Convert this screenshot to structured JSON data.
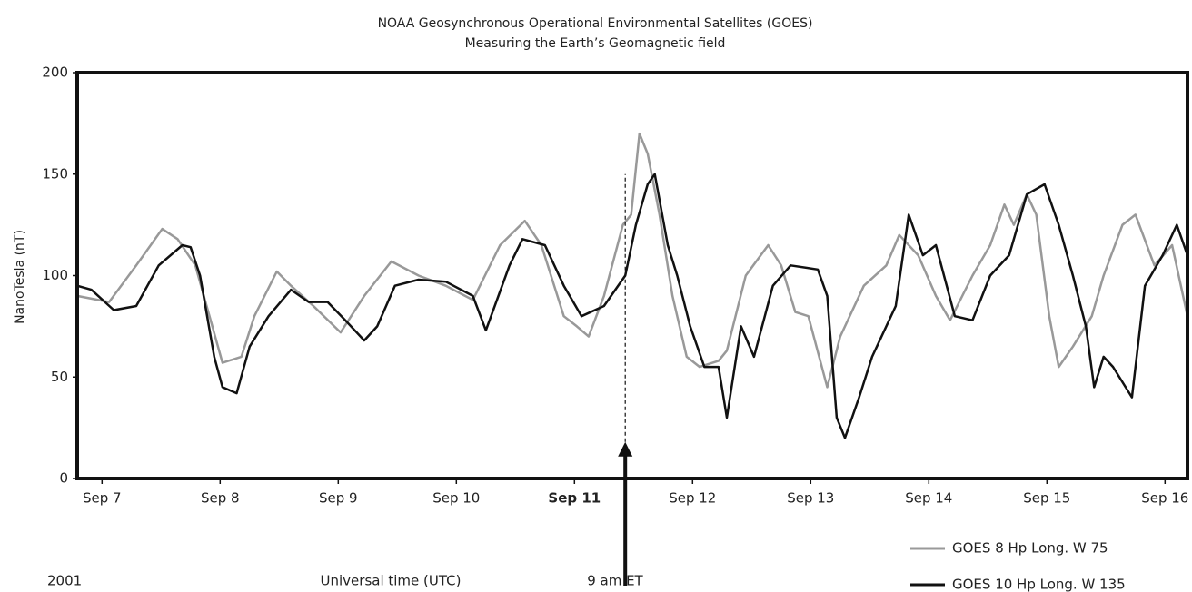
{
  "chart_data": {
    "type": "line",
    "title": "NOAA Geosynchronous Operational Environmental Satellites (GOES)",
    "subtitle": "Measuring the Earth’s Geomagnetic field",
    "y_label": "NanoTesla (nT)",
    "x_label": "Universal time (UTC)",
    "year_note": "2001",
    "xlim": [
      -0.21,
      9.19
    ],
    "ylim": [
      0,
      200
    ],
    "yticks": [
      0,
      50,
      100,
      150,
      200
    ],
    "xticks": [
      {
        "value": 0,
        "label": "Sep 7"
      },
      {
        "value": 1,
        "label": "Sep 8"
      },
      {
        "value": 2,
        "label": "Sep 9"
      },
      {
        "value": 3,
        "label": "Sep 10"
      },
      {
        "value": 4,
        "label": "Sep 11",
        "bold": true
      },
      {
        "value": 5,
        "label": "Sep 12"
      },
      {
        "value": 6,
        "label": "Sep 13"
      },
      {
        "value": 7,
        "label": "Sep 14"
      },
      {
        "value": 8,
        "label": "Sep 15"
      },
      {
        "value": 9,
        "label": "Sep 16"
      }
    ],
    "annotation": {
      "text": "9 am ET",
      "x": 4.43,
      "y": [
        18,
        150
      ]
    },
    "legend": "below-right",
    "series": [
      {
        "name": "GOES 8 Hp Long. W 75",
        "color": "#999999",
        "x": [
          -0.21,
          0.06,
          0.29,
          0.51,
          0.64,
          0.79,
          0.91,
          1.02,
          1.18,
          1.29,
          1.48,
          1.6,
          1.79,
          2.02,
          2.22,
          2.45,
          2.68,
          2.91,
          3.14,
          3.37,
          3.58,
          3.72,
          3.91,
          4.02,
          4.12,
          4.25,
          4.41,
          4.48,
          4.55,
          4.62,
          4.72,
          4.83,
          4.95,
          5.06,
          5.22,
          5.29,
          5.45,
          5.64,
          5.75,
          5.87,
          5.98,
          6.14,
          6.25,
          6.45,
          6.64,
          6.75,
          6.91,
          7.06,
          7.18,
          7.37,
          7.52,
          7.64,
          7.72,
          7.83,
          7.91,
          8.02,
          8.1,
          8.22,
          8.38,
          8.48,
          8.64,
          8.75,
          8.91,
          9.06,
          9.19
        ],
        "values": [
          90,
          87,
          105,
          123,
          118,
          105,
          80,
          57,
          60,
          80,
          102,
          95,
          85,
          72,
          90,
          107,
          100,
          95,
          88,
          115,
          127,
          115,
          80,
          75,
          70,
          90,
          125,
          130,
          170,
          160,
          130,
          90,
          60,
          55,
          58,
          63,
          100,
          115,
          105,
          82,
          80,
          45,
          70,
          95,
          105,
          120,
          110,
          90,
          78,
          100,
          115,
          135,
          125,
          140,
          130,
          80,
          55,
          65,
          80,
          100,
          125,
          130,
          105,
          115,
          80
        ]
      },
      {
        "name": "GOES 10 Hp Long. W 135",
        "color": "#111111",
        "x": [
          -0.21,
          -0.09,
          0.1,
          0.29,
          0.48,
          0.68,
          0.75,
          0.83,
          0.95,
          1.02,
          1.14,
          1.25,
          1.41,
          1.6,
          1.75,
          1.91,
          2.06,
          2.22,
          2.33,
          2.48,
          2.68,
          2.91,
          3.14,
          3.25,
          3.45,
          3.56,
          3.75,
          3.91,
          4.06,
          4.25,
          4.43,
          4.52,
          4.62,
          4.68,
          4.79,
          4.87,
          4.98,
          5.1,
          5.22,
          5.29,
          5.41,
          5.52,
          5.68,
          5.83,
          6.06,
          6.14,
          6.22,
          6.29,
          6.41,
          6.52,
          6.72,
          6.83,
          6.95,
          7.06,
          7.22,
          7.37,
          7.52,
          7.68,
          7.83,
          7.98,
          8.1,
          8.22,
          8.33,
          8.4,
          8.48,
          8.56,
          8.72,
          8.83,
          8.98,
          9.1,
          9.19
        ],
        "values": [
          95,
          93,
          83,
          85,
          105,
          115,
          114,
          100,
          60,
          45,
          42,
          65,
          80,
          93,
          87,
          87,
          78,
          68,
          75,
          95,
          98,
          97,
          90,
          73,
          105,
          118,
          115,
          95,
          80,
          85,
          100,
          125,
          145,
          150,
          115,
          100,
          75,
          55,
          55,
          30,
          75,
          60,
          95,
          105,
          103,
          90,
          30,
          20,
          40,
          60,
          85,
          130,
          110,
          115,
          80,
          78,
          100,
          110,
          140,
          145,
          125,
          100,
          75,
          45,
          60,
          55,
          40,
          95,
          110,
          125,
          110
        ]
      }
    ]
  }
}
